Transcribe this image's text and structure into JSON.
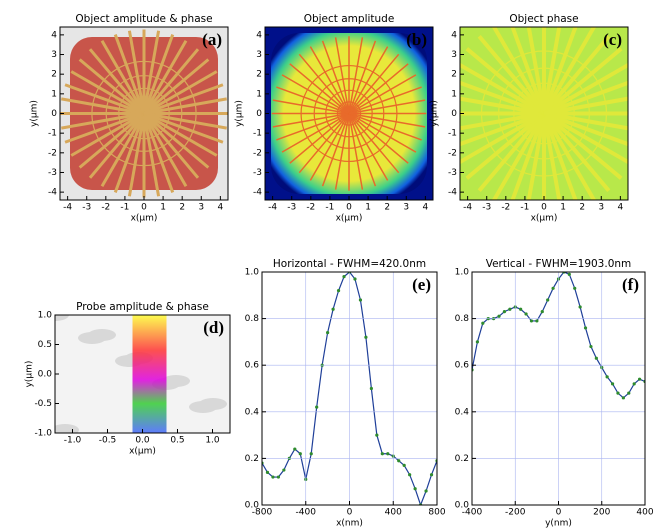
{
  "chart_data": [
    {
      "type": "image",
      "title": "Object amplitude & phase",
      "panel_label": "(a)",
      "xlabel": "x(µm)",
      "ylabel": "y(µm)",
      "xlim": [
        -4.4,
        4.4
      ],
      "ylim": [
        -4.4,
        4.4
      ],
      "xticks": [
        -4,
        -3,
        -2,
        -1,
        0,
        1,
        2,
        3,
        4
      ],
      "yticks": [
        -4,
        -3,
        -2,
        -1,
        0,
        1,
        2,
        3,
        4
      ],
      "style": "amplitude-phase"
    },
    {
      "type": "image",
      "title": "Object amplitude",
      "panel_label": "(b)",
      "xlabel": "x(µm)",
      "ylabel": "y(µm)",
      "xlim": [
        -4.4,
        4.4
      ],
      "ylim": [
        -4.4,
        4.4
      ],
      "xticks": [
        -4,
        -3,
        -2,
        -1,
        0,
        1,
        2,
        3,
        4
      ],
      "yticks": [
        -4,
        -3,
        -2,
        -1,
        0,
        1,
        2,
        3,
        4
      ],
      "style": "amplitude"
    },
    {
      "type": "image",
      "title": "Object phase",
      "panel_label": "(c)",
      "xlabel": "x(µm)",
      "ylabel": "y(µm)",
      "xlim": [
        -4.4,
        4.4
      ],
      "ylim": [
        -4.4,
        4.4
      ],
      "xticks": [
        -4,
        -3,
        -2,
        -1,
        0,
        1,
        2,
        3,
        4
      ],
      "yticks": [
        -4,
        -3,
        -2,
        -1,
        0,
        1,
        2,
        3,
        4
      ],
      "style": "phase"
    },
    {
      "type": "image",
      "title": "Probe amplitude & phase",
      "panel_label": "(d)",
      "xlabel": "x(µm)",
      "ylabel": "y(µm)",
      "xlim": [
        -1.25,
        1.25
      ],
      "ylim": [
        -1.0,
        1.0
      ],
      "xticks": [
        {
          "value": -1,
          "label": "-1.0"
        },
        {
          "value": -0.5,
          "label": "-0.5"
        },
        {
          "value": 0,
          "label": "0.0"
        },
        {
          "value": 0.5,
          "label": "0.5"
        },
        {
          "value": 1,
          "label": "1.0"
        }
      ],
      "yticks": [
        {
          "value": -1,
          "label": "-1.0"
        },
        {
          "value": -0.5,
          "label": "-0.5"
        },
        {
          "value": 0,
          "label": "0.0"
        },
        {
          "value": 0.5,
          "label": "0.5"
        },
        {
          "value": 1,
          "label": "1.0"
        }
      ],
      "style": "probe"
    },
    {
      "type": "line",
      "title": "Horizontal - FWHM=420.0nm",
      "panel_label": "(e)",
      "xlabel": "x(nm)",
      "xlim": [
        -800,
        800
      ],
      "ylim": [
        0,
        1
      ],
      "xticks": [
        -800,
        -400,
        0,
        400,
        800
      ],
      "yticks": [
        {
          "value": 0,
          "label": "0.0"
        },
        {
          "value": 0.2,
          "label": "0.2"
        },
        {
          "value": 0.4,
          "label": "0.4"
        },
        {
          "value": 0.6,
          "label": "0.6"
        },
        {
          "value": 0.8,
          "label": "0.8"
        },
        {
          "value": 1,
          "label": "1.0"
        }
      ],
      "grid": true,
      "x": [
        -800,
        -750,
        -700,
        -650,
        -600,
        -550,
        -500,
        -450,
        -400,
        -350,
        -300,
        -250,
        -200,
        -150,
        -100,
        -50,
        0,
        50,
        100,
        150,
        200,
        250,
        300,
        350,
        400,
        450,
        500,
        550,
        600,
        650,
        700,
        750,
        800
      ],
      "series": [
        {
          "color": "#2e8b2e",
          "line_color": "#1f3f99",
          "values": [
            0.18,
            0.14,
            0.12,
            0.12,
            0.15,
            0.2,
            0.24,
            0.22,
            0.11,
            0.22,
            0.42,
            0.6,
            0.74,
            0.84,
            0.92,
            0.98,
            1.0,
            0.97,
            0.88,
            0.72,
            0.5,
            0.3,
            0.22,
            0.22,
            0.21,
            0.19,
            0.17,
            0.13,
            0.07,
            0.0,
            0.06,
            0.13,
            0.19
          ]
        }
      ]
    },
    {
      "type": "line",
      "title": "Vertical - FWHM=1903.0nm",
      "panel_label": "(f)",
      "xlabel": "y(nm)",
      "xlim": [
        -400,
        400
      ],
      "ylim": [
        0,
        1
      ],
      "xticks": [
        -400,
        -200,
        0,
        200,
        400
      ],
      "yticks": [
        {
          "value": 0,
          "label": "0.0"
        },
        {
          "value": 0.2,
          "label": "0.2"
        },
        {
          "value": 0.4,
          "label": "0.4"
        },
        {
          "value": 0.6,
          "label": "0.6"
        },
        {
          "value": 0.8,
          "label": "0.8"
        },
        {
          "value": 1,
          "label": "1.0"
        }
      ],
      "grid": true,
      "x": [
        -400,
        -375,
        -350,
        -325,
        -300,
        -275,
        -250,
        -225,
        -200,
        -175,
        -150,
        -125,
        -100,
        -75,
        -50,
        -25,
        0,
        25,
        50,
        75,
        100,
        125,
        150,
        175,
        200,
        225,
        250,
        275,
        300,
        325,
        350,
        375,
        400
      ],
      "series": [
        {
          "color": "#2e8b2e",
          "line_color": "#1f3f99",
          "values": [
            0.58,
            0.7,
            0.78,
            0.8,
            0.8,
            0.81,
            0.83,
            0.84,
            0.85,
            0.84,
            0.82,
            0.79,
            0.79,
            0.83,
            0.88,
            0.93,
            0.97,
            1.0,
            0.99,
            0.93,
            0.85,
            0.76,
            0.68,
            0.63,
            0.59,
            0.55,
            0.52,
            0.48,
            0.46,
            0.48,
            0.52,
            0.54,
            0.53
          ]
        }
      ]
    }
  ]
}
